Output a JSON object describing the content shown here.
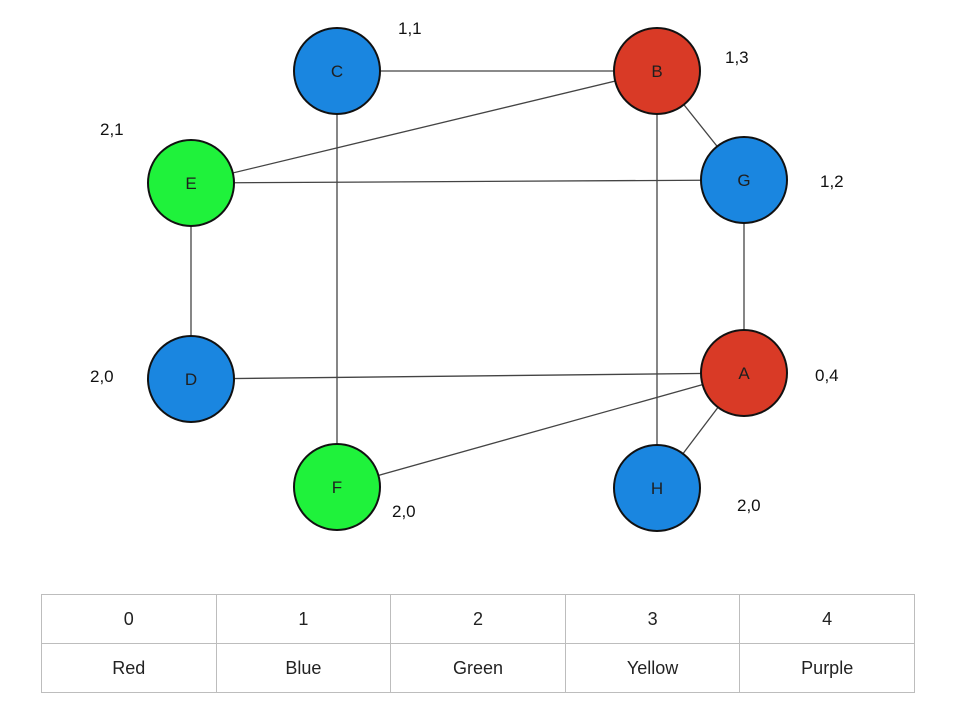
{
  "colors": {
    "red": "#d93a26",
    "blue": "#1a86e0",
    "green": "#1ff23b",
    "stroke": "#111111",
    "edge": "#444444"
  },
  "nodes": [
    {
      "id": "C",
      "label": "C",
      "fill": "blue",
      "annotation": "1,1"
    },
    {
      "id": "B",
      "label": "B",
      "fill": "red",
      "annotation": "1,3"
    },
    {
      "id": "E",
      "label": "E",
      "fill": "green",
      "annotation": "2,1"
    },
    {
      "id": "G",
      "label": "G",
      "fill": "blue",
      "annotation": "1,2"
    },
    {
      "id": "D",
      "label": "D",
      "fill": "blue",
      "annotation": "2,0"
    },
    {
      "id": "A",
      "label": "A",
      "fill": "red",
      "annotation": "0,4"
    },
    {
      "id": "F",
      "label": "F",
      "fill": "green",
      "annotation": "2,0"
    },
    {
      "id": "H",
      "label": "H",
      "fill": "blue",
      "annotation": "2,0"
    }
  ],
  "edges": [
    [
      "C",
      "B"
    ],
    [
      "C",
      "F"
    ],
    [
      "B",
      "E"
    ],
    [
      "B",
      "G"
    ],
    [
      "B",
      "H"
    ],
    [
      "E",
      "G"
    ],
    [
      "E",
      "D"
    ],
    [
      "G",
      "A"
    ],
    [
      "D",
      "A"
    ],
    [
      "F",
      "A"
    ],
    [
      "A",
      "H"
    ]
  ],
  "table": {
    "numbers": [
      "0",
      "1",
      "2",
      "3",
      "4"
    ],
    "names": [
      "Red",
      "Blue",
      "Green",
      "Yellow",
      "Purple"
    ]
  }
}
